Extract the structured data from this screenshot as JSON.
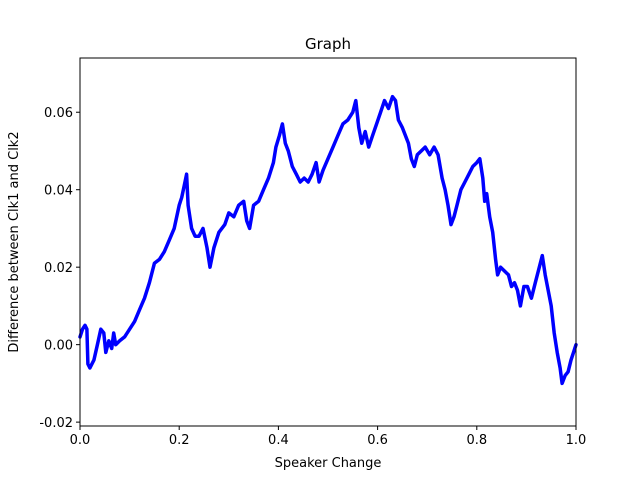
{
  "chart_data": {
    "type": "line",
    "title": "Graph",
    "xlabel": "Speaker Change",
    "ylabel": "Difference between Clk1 and Clk2",
    "xlim": [
      0.0,
      1.0
    ],
    "ylim": [
      -0.021,
      0.074
    ],
    "xticks": [
      "0.0",
      "0.2",
      "0.4",
      "0.6",
      "0.8",
      "1.0"
    ],
    "yticks": [
      "-0.02",
      "0.00",
      "0.02",
      "0.04",
      "0.06"
    ],
    "grid": false,
    "legend": "none",
    "series": [
      {
        "color": "#0000ff",
        "points": [
          [
            0.0,
            0.002
          ],
          [
            0.005,
            0.004
          ],
          [
            0.01,
            0.005
          ],
          [
            0.014,
            0.004
          ],
          [
            0.016,
            -0.005
          ],
          [
            0.02,
            -0.006
          ],
          [
            0.028,
            -0.004
          ],
          [
            0.035,
            0.0
          ],
          [
            0.042,
            0.004
          ],
          [
            0.048,
            0.003
          ],
          [
            0.052,
            -0.002
          ],
          [
            0.058,
            0.001
          ],
          [
            0.064,
            -0.001
          ],
          [
            0.068,
            0.003
          ],
          [
            0.072,
            0.0
          ],
          [
            0.08,
            0.001
          ],
          [
            0.09,
            0.002
          ],
          [
            0.1,
            0.004
          ],
          [
            0.11,
            0.006
          ],
          [
            0.12,
            0.009
          ],
          [
            0.13,
            0.012
          ],
          [
            0.14,
            0.016
          ],
          [
            0.15,
            0.021
          ],
          [
            0.16,
            0.022
          ],
          [
            0.17,
            0.024
          ],
          [
            0.18,
            0.027
          ],
          [
            0.19,
            0.03
          ],
          [
            0.2,
            0.036
          ],
          [
            0.205,
            0.038
          ],
          [
            0.21,
            0.041
          ],
          [
            0.215,
            0.044
          ],
          [
            0.218,
            0.036
          ],
          [
            0.225,
            0.03
          ],
          [
            0.232,
            0.028
          ],
          [
            0.24,
            0.028
          ],
          [
            0.248,
            0.03
          ],
          [
            0.256,
            0.025
          ],
          [
            0.262,
            0.02
          ],
          [
            0.27,
            0.025
          ],
          [
            0.28,
            0.029
          ],
          [
            0.292,
            0.031
          ],
          [
            0.3,
            0.034
          ],
          [
            0.31,
            0.033
          ],
          [
            0.32,
            0.036
          ],
          [
            0.33,
            0.037
          ],
          [
            0.336,
            0.032
          ],
          [
            0.342,
            0.03
          ],
          [
            0.35,
            0.036
          ],
          [
            0.36,
            0.037
          ],
          [
            0.37,
            0.04
          ],
          [
            0.38,
            0.043
          ],
          [
            0.39,
            0.047
          ],
          [
            0.395,
            0.051
          ],
          [
            0.402,
            0.054
          ],
          [
            0.408,
            0.057
          ],
          [
            0.414,
            0.052
          ],
          [
            0.42,
            0.05
          ],
          [
            0.428,
            0.046
          ],
          [
            0.436,
            0.044
          ],
          [
            0.444,
            0.042
          ],
          [
            0.452,
            0.043
          ],
          [
            0.46,
            0.042
          ],
          [
            0.468,
            0.044
          ],
          [
            0.476,
            0.047
          ],
          [
            0.482,
            0.042
          ],
          [
            0.49,
            0.045
          ],
          [
            0.5,
            0.048
          ],
          [
            0.51,
            0.051
          ],
          [
            0.52,
            0.054
          ],
          [
            0.53,
            0.057
          ],
          [
            0.54,
            0.058
          ],
          [
            0.55,
            0.06
          ],
          [
            0.556,
            0.063
          ],
          [
            0.562,
            0.056
          ],
          [
            0.568,
            0.052
          ],
          [
            0.575,
            0.055
          ],
          [
            0.582,
            0.051
          ],
          [
            0.59,
            0.054
          ],
          [
            0.598,
            0.057
          ],
          [
            0.606,
            0.06
          ],
          [
            0.614,
            0.063
          ],
          [
            0.622,
            0.061
          ],
          [
            0.63,
            0.064
          ],
          [
            0.636,
            0.063
          ],
          [
            0.642,
            0.058
          ],
          [
            0.65,
            0.056
          ],
          [
            0.656,
            0.054
          ],
          [
            0.662,
            0.052
          ],
          [
            0.668,
            0.048
          ],
          [
            0.674,
            0.046
          ],
          [
            0.68,
            0.049
          ],
          [
            0.688,
            0.05
          ],
          [
            0.696,
            0.051
          ],
          [
            0.705,
            0.049
          ],
          [
            0.714,
            0.051
          ],
          [
            0.722,
            0.049
          ],
          [
            0.73,
            0.043
          ],
          [
            0.736,
            0.04
          ],
          [
            0.742,
            0.036
          ],
          [
            0.748,
            0.031
          ],
          [
            0.754,
            0.033
          ],
          [
            0.76,
            0.036
          ],
          [
            0.768,
            0.04
          ],
          [
            0.776,
            0.042
          ],
          [
            0.784,
            0.044
          ],
          [
            0.792,
            0.046
          ],
          [
            0.8,
            0.047
          ],
          [
            0.806,
            0.048
          ],
          [
            0.812,
            0.043
          ],
          [
            0.816,
            0.037
          ],
          [
            0.82,
            0.039
          ],
          [
            0.826,
            0.033
          ],
          [
            0.832,
            0.029
          ],
          [
            0.838,
            0.022
          ],
          [
            0.842,
            0.018
          ],
          [
            0.848,
            0.02
          ],
          [
            0.856,
            0.019
          ],
          [
            0.864,
            0.018
          ],
          [
            0.87,
            0.015
          ],
          [
            0.876,
            0.016
          ],
          [
            0.882,
            0.014
          ],
          [
            0.888,
            0.01
          ],
          [
            0.895,
            0.015
          ],
          [
            0.902,
            0.015
          ],
          [
            0.91,
            0.012
          ],
          [
            0.918,
            0.016
          ],
          [
            0.926,
            0.02
          ],
          [
            0.932,
            0.023
          ],
          [
            0.938,
            0.018
          ],
          [
            0.944,
            0.014
          ],
          [
            0.95,
            0.01
          ],
          [
            0.956,
            0.003
          ],
          [
            0.962,
            -0.002
          ],
          [
            0.968,
            -0.006
          ],
          [
            0.972,
            -0.01
          ],
          [
            0.978,
            -0.008
          ],
          [
            0.984,
            -0.007
          ],
          [
            0.99,
            -0.004
          ],
          [
            0.995,
            -0.002
          ],
          [
            1.0,
            0.0
          ]
        ]
      }
    ]
  }
}
